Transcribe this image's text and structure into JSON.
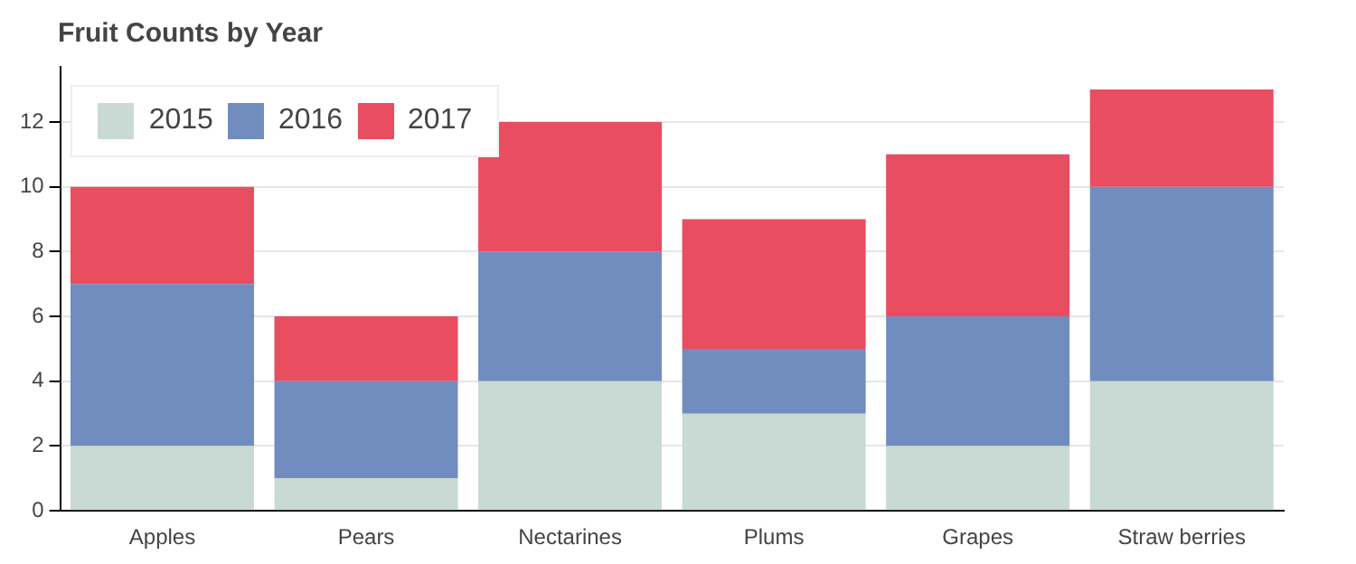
{
  "chart_data": {
    "type": "bar",
    "title": "Fruit Counts by Year",
    "stacked": true,
    "categories": [
      "Apples",
      "Pears",
      "Nectarines",
      "Plums",
      "Grapes",
      "Straw berries"
    ],
    "series": [
      {
        "name": "2015",
        "color": "#c9d9d3",
        "values": [
          2,
          1,
          4,
          3,
          2,
          4
        ]
      },
      {
        "name": "2016",
        "color": "#718dbf",
        "values": [
          5,
          3,
          4,
          2,
          4,
          6
        ]
      },
      {
        "name": "2017",
        "color": "#e84d60",
        "values": [
          3,
          2,
          4,
          4,
          5,
          3
        ]
      }
    ],
    "ylim": [
      0,
      13.7
    ],
    "yticks": [
      0,
      2,
      4,
      6,
      8,
      10,
      12
    ],
    "grid": "y",
    "legend": "top left"
  }
}
